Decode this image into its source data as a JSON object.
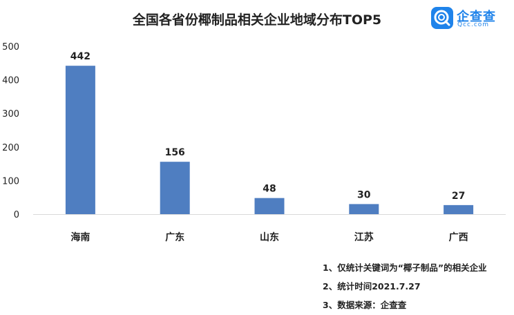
{
  "header": {
    "title": "全国各省份椰制品相关企业地域分布TOP5"
  },
  "logo": {
    "brand": "企查查",
    "domain": "Qcc.com",
    "icon": "qcc-logo-icon",
    "color": "#1f83ea"
  },
  "chart_data": {
    "type": "bar",
    "title": "全国各省份椰制品相关企业地域分布TOP5",
    "categories": [
      "海南",
      "广东",
      "山东",
      "江苏",
      "广西"
    ],
    "values": [
      442,
      156,
      48,
      30,
      27
    ],
    "data_labels": [
      "442",
      "156",
      "48",
      "30",
      "27"
    ],
    "ylim": [
      0,
      500
    ],
    "yticks": [
      0,
      100,
      200,
      300,
      400,
      500
    ],
    "ytick_labels": [
      "0",
      "100",
      "200",
      "300",
      "400",
      "500"
    ],
    "xlabel": "",
    "ylabel": "",
    "bar_color": "#4f7ec1",
    "grid": false,
    "legend": "none"
  },
  "notes": [
    "1、仅统计关键词为“椰子制品”的相关企业",
    "2、统计时间2021.7.27",
    "3、数据来源：企查查"
  ]
}
